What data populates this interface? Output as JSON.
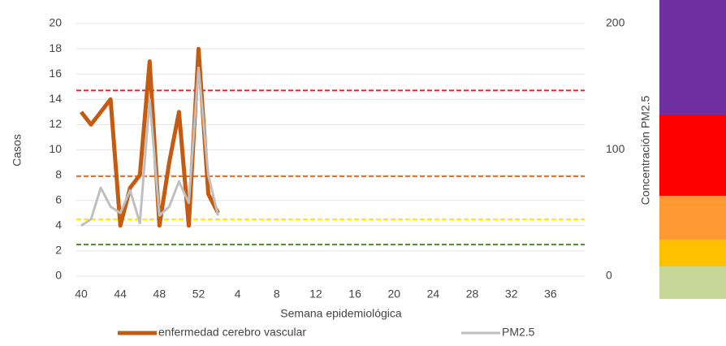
{
  "chart_data": {
    "type": "line",
    "x_label": "Semana epidemiológica",
    "y_label": "Casos",
    "y2_label": "Concentración PM2.5",
    "categories": [
      "40",
      null,
      null,
      null,
      "44",
      null,
      null,
      null,
      "48",
      null,
      null,
      null,
      "52",
      null,
      null,
      null,
      "4",
      null,
      null,
      null,
      "8",
      null,
      null,
      null,
      "12",
      null,
      null,
      null,
      "16",
      null,
      null,
      null,
      "20",
      null,
      null,
      null,
      "24",
      null,
      null,
      null,
      "28",
      null,
      null,
      null,
      "32",
      null,
      null,
      null,
      "36",
      null,
      null,
      null
    ],
    "series": [
      {
        "name": "enfermedad cerebro vascular",
        "color": "#c55a11",
        "values": [
          13,
          12,
          13,
          14,
          4,
          7,
          8,
          17,
          4,
          9,
          13,
          4,
          18,
          6.5,
          5,
          null,
          null,
          null,
          null,
          null,
          null,
          null,
          null,
          null,
          null,
          null,
          null,
          null,
          null,
          null,
          null,
          null,
          null,
          null,
          null,
          null,
          null,
          null,
          null,
          null,
          null,
          null,
          null,
          null,
          null,
          null,
          null,
          null,
          null,
          null,
          null,
          null
        ]
      },
      {
        "name": "PM2.5",
        "color": "#bfbfbf",
        "axis": "y2",
        "values": [
          40,
          45,
          70,
          55,
          50,
          68,
          42,
          140,
          48,
          55,
          75,
          58,
          165,
          80,
          48,
          null,
          null,
          null,
          null,
          null,
          null,
          null,
          null,
          null,
          null,
          null,
          null,
          null,
          null,
          null,
          null,
          null,
          null,
          null,
          null,
          null,
          null,
          null,
          null,
          null,
          null,
          null,
          null,
          null,
          null,
          null,
          null,
          null,
          null,
          null,
          null,
          null
        ]
      }
    ],
    "ylim": [
      0,
      20
    ],
    "yticks": [
      0,
      2,
      4,
      6,
      8,
      10,
      12,
      14,
      16,
      18,
      20
    ],
    "y2lim": [
      0,
      200
    ],
    "y2ticks": [
      0,
      100,
      200
    ],
    "hlines": [
      {
        "value": 14.7,
        "color": "#e8202a"
      },
      {
        "value": 7.9,
        "color": "#e07020"
      },
      {
        "value": 4.5,
        "color": "#ffee00"
      },
      {
        "value": 2.5,
        "color": "#4a8a2a"
      }
    ],
    "grid": true
  }
}
